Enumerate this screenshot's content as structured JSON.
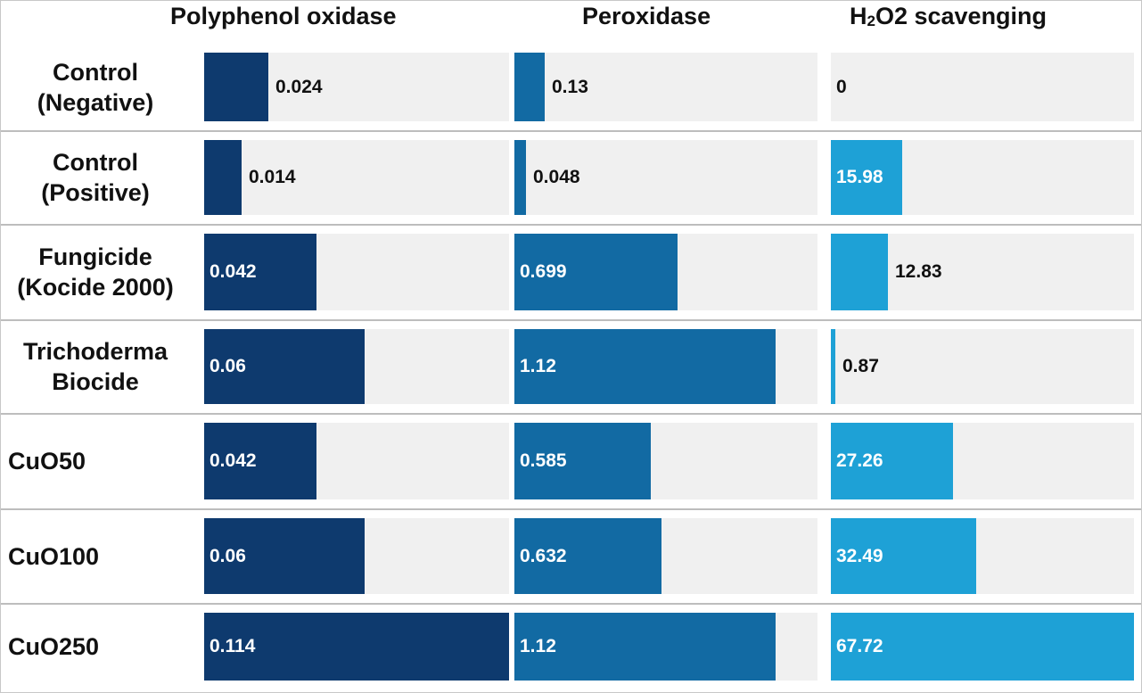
{
  "chart_data": {
    "type": "bar",
    "orientation": "horizontal",
    "categories": [
      "Control\n(Negative)",
      "Control\n(Positive)",
      "Fungicide\n(Kocide 2000)",
      "Trichoderma\nBiocide",
      "CuO50",
      "CuO100",
      "CuO250"
    ],
    "series": [
      {
        "name_main": "Polyphenol oxidase",
        "name_sub": "",
        "name_tail": "",
        "values": [
          0.024,
          0.014,
          0.042,
          0.06,
          0.042,
          0.06,
          0.114
        ],
        "labels": [
          "0.024",
          "0.014",
          "0.042",
          "0.06",
          "0.042",
          "0.06",
          "0.114"
        ],
        "max": 0.114
      },
      {
        "name_main": "Peroxidase",
        "name_sub": "",
        "name_tail": "",
        "values": [
          0.13,
          0.048,
          0.699,
          1.12,
          0.585,
          0.632,
          1.12
        ],
        "labels": [
          "0.13",
          "0.048",
          "0.699",
          "1.12",
          "0.585",
          "0.632",
          "1.12"
        ],
        "max": 1.3
      },
      {
        "name_main": "H",
        "name_sub": "2",
        "name_tail": "O2 scavenging",
        "values": [
          0,
          15.98,
          12.83,
          0.87,
          27.26,
          32.49,
          67.72
        ],
        "labels": [
          "0",
          "15.98",
          "12.83",
          "0.87",
          "27.26",
          "32.49",
          "67.72"
        ],
        "max": 67.72
      }
    ],
    "colors": [
      "#0e3a6e",
      "#126aa3",
      "#1ea1d6"
    ],
    "track_color": "#f0f0f0",
    "grid": false,
    "legend": "none"
  }
}
